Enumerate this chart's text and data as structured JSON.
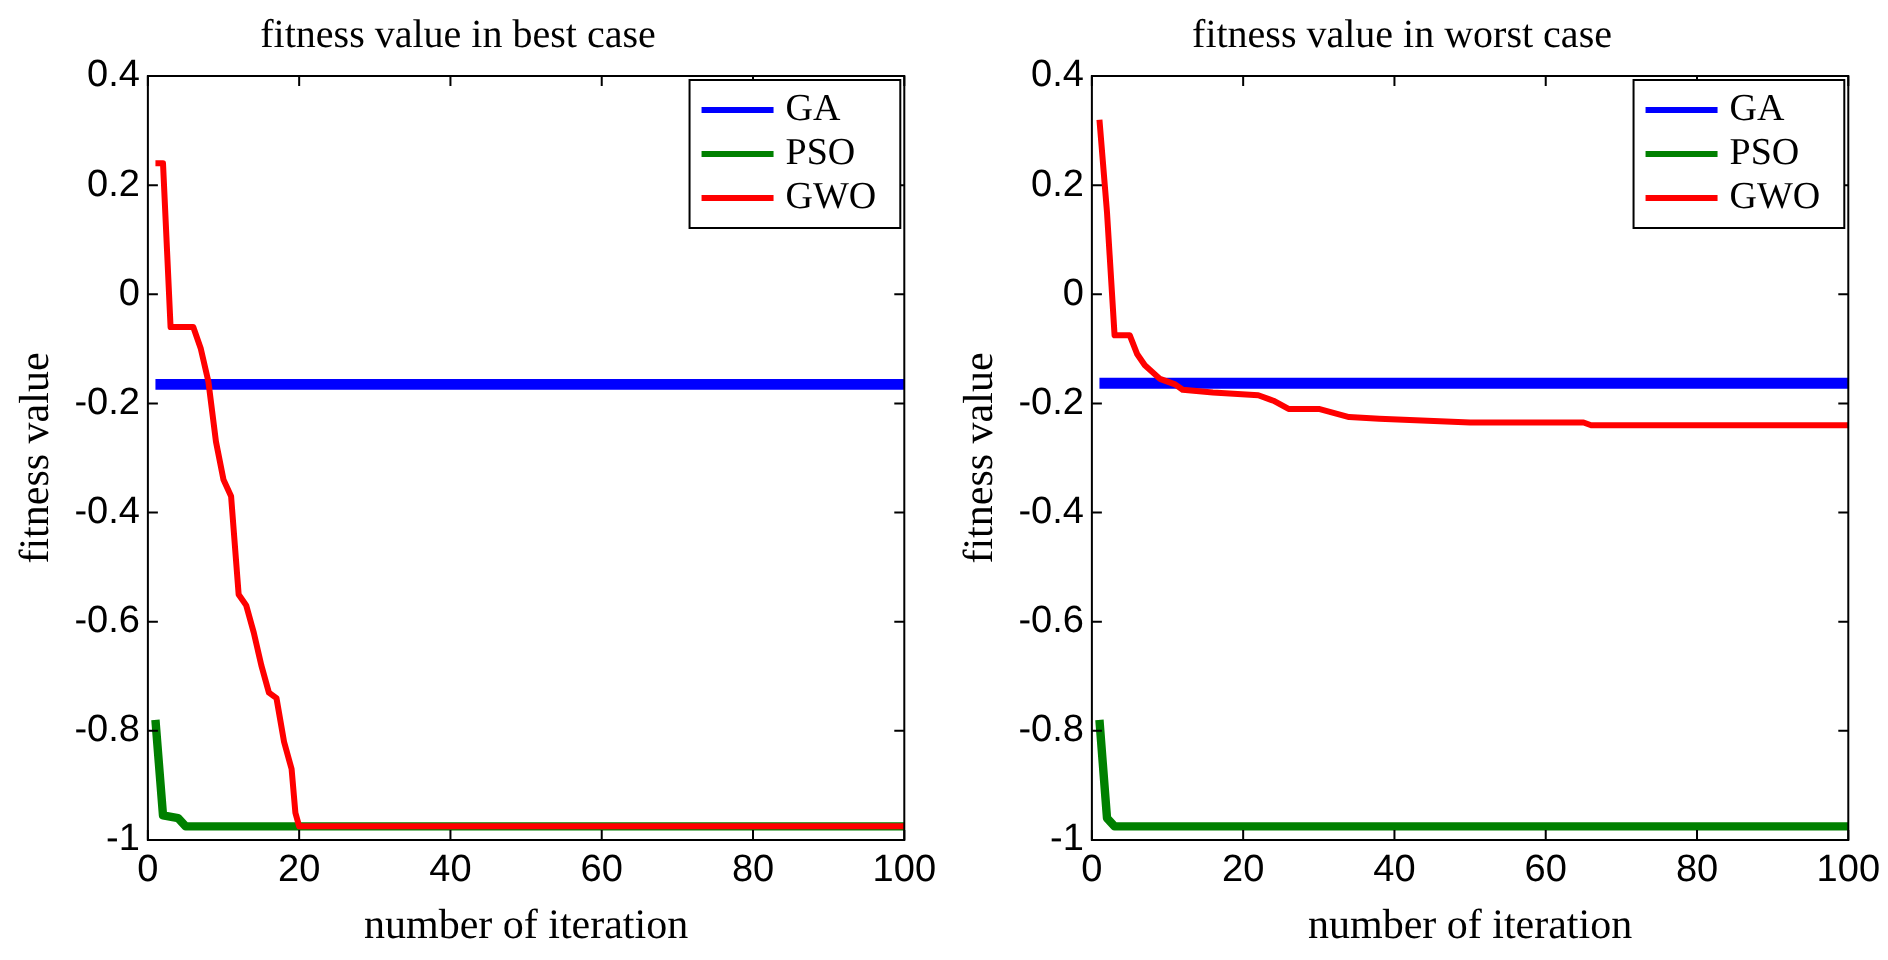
{
  "chart_data": [
    {
      "type": "line",
      "title": "fitness value in best case",
      "xlabel": "number of iteration",
      "ylabel": "fitness value",
      "xlim": [
        0,
        100
      ],
      "xticks": [
        0,
        20,
        40,
        60,
        80,
        100
      ],
      "ylim": [
        -1,
        0.4
      ],
      "yticks": [
        -1,
        -0.8,
        -0.6,
        -0.4,
        -0.2,
        0,
        0.2,
        0.4
      ],
      "legend": "top right",
      "grid": false,
      "marker": "none",
      "series": [
        {
          "name": "GA",
          "color": "#0000ff",
          "x": [
            1,
            100
          ],
          "values": [
            -0.165,
            -0.165
          ]
        },
        {
          "name": "PSO",
          "color": "#008000",
          "x": [
            1,
            2,
            4,
            5,
            100
          ],
          "values": [
            -0.78,
            -0.955,
            -0.96,
            -0.975,
            -0.975
          ]
        },
        {
          "name": "GWO",
          "color": "#ff0000",
          "x": [
            1,
            2,
            3,
            6,
            7,
            8,
            9,
            10,
            11,
            12,
            13,
            14,
            15,
            16,
            17,
            18,
            19,
            19.5,
            20,
            100
          ],
          "values": [
            0.24,
            0.24,
            -0.06,
            -0.06,
            -0.1,
            -0.16,
            -0.27,
            -0.34,
            -0.37,
            -0.55,
            -0.57,
            -0.62,
            -0.68,
            -0.73,
            -0.74,
            -0.82,
            -0.87,
            -0.95,
            -0.975,
            -0.975
          ]
        }
      ]
    },
    {
      "type": "line",
      "title": "fitness value in worst case",
      "xlabel": "number of iteration",
      "ylabel": "fitness value",
      "xlim": [
        0,
        100
      ],
      "xticks": [
        0,
        20,
        40,
        60,
        80,
        100
      ],
      "ylim": [
        -1,
        0.4
      ],
      "yticks": [
        -1,
        -0.8,
        -0.6,
        -0.4,
        -0.2,
        0,
        0.2,
        0.4
      ],
      "legend": "top right",
      "grid": false,
      "marker": "none",
      "series": [
        {
          "name": "GA",
          "color": "#0000ff",
          "x": [
            1,
            100
          ],
          "values": [
            -0.163,
            -0.163
          ]
        },
        {
          "name": "PSO",
          "color": "#008000",
          "x": [
            1,
            2,
            3,
            100
          ],
          "values": [
            -0.78,
            -0.96,
            -0.975,
            -0.975
          ]
        },
        {
          "name": "GWO",
          "color": "#ff0000",
          "x": [
            1,
            2,
            3,
            5,
            6,
            7,
            9,
            11,
            12,
            16,
            22,
            24,
            26,
            30,
            34,
            38,
            50,
            65,
            66,
            100
          ],
          "values": [
            0.32,
            0.15,
            -0.075,
            -0.075,
            -0.11,
            -0.13,
            -0.155,
            -0.165,
            -0.175,
            -0.18,
            -0.185,
            -0.195,
            -0.21,
            -0.21,
            -0.225,
            -0.228,
            -0.235,
            -0.235,
            -0.24,
            -0.24
          ]
        }
      ]
    }
  ]
}
